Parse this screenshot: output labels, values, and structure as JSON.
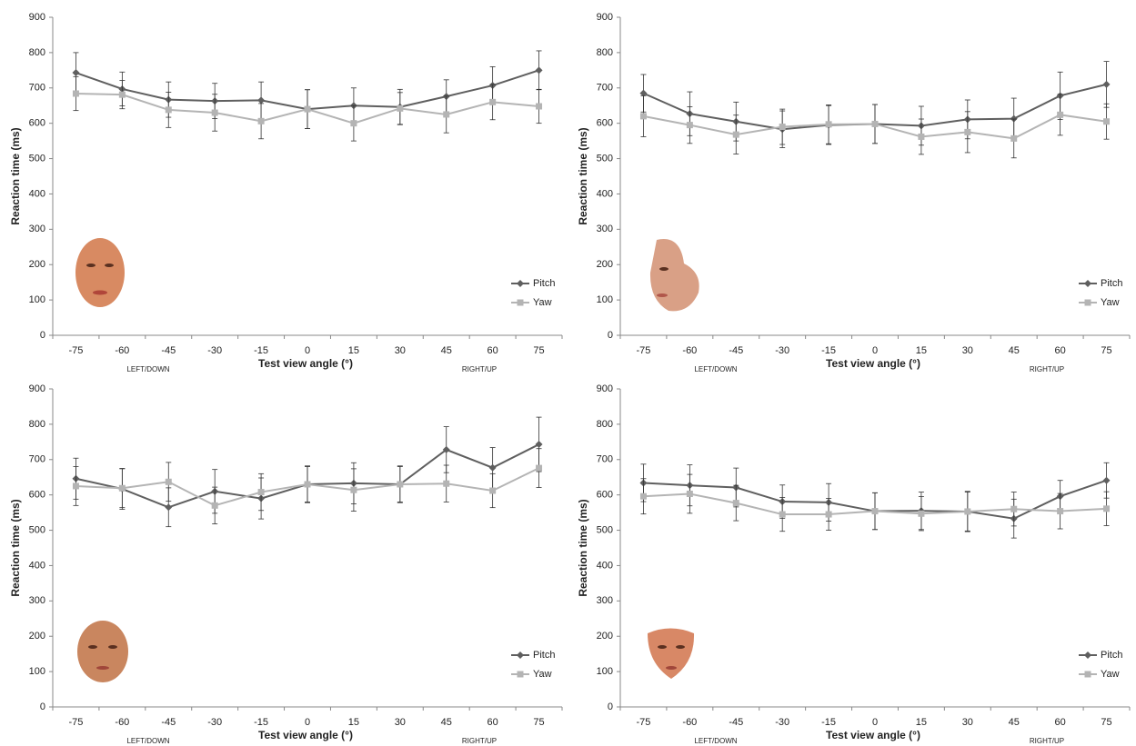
{
  "chart_data": [
    {
      "type": "line",
      "ylabel": "Reaction time (ms)",
      "xlabel": "Test view angle (°)",
      "annotations": [
        "LEFT/DOWN",
        "RIGHT/UP"
      ],
      "categories": [
        "-75",
        "-60",
        "-45",
        "-30",
        "-15",
        "0",
        "15",
        "30",
        "45",
        "60",
        "75"
      ],
      "ylim": [
        0,
        900
      ],
      "yticks": [
        0,
        100,
        200,
        300,
        400,
        500,
        600,
        700,
        800,
        900
      ],
      "legend": "right",
      "series": [
        {
          "name": "Pitch",
          "color": "#5f5f5f",
          "marker": "diamond",
          "values": [
            743,
            697,
            667,
            663,
            665,
            640,
            650,
            646,
            676,
            707,
            750
          ],
          "errors": [
            57,
            48,
            50,
            50,
            52,
            55,
            50,
            50,
            47,
            53,
            55
          ]
        },
        {
          "name": "Yaw",
          "color": "#b4b4b4",
          "marker": "square",
          "values": [
            684,
            681,
            638,
            630,
            606,
            640,
            600,
            642,
            625,
            660,
            648
          ],
          "errors": [
            48,
            40,
            50,
            52,
            50,
            55,
            50,
            45,
            52,
            50,
            48
          ]
        }
      ]
    },
    {
      "type": "line",
      "ylabel": "Reaction time (ms)",
      "xlabel": "Test view angle (°)",
      "annotations": [
        "LEFT/DOWN",
        "RIGHT/UP"
      ],
      "categories": [
        "-75",
        "-60",
        "-45",
        "-30",
        "-15",
        "0",
        "15",
        "30",
        "45",
        "60",
        "75"
      ],
      "ylim": [
        0,
        900
      ],
      "yticks": [
        0,
        100,
        200,
        300,
        400,
        500,
        600,
        700,
        800,
        900
      ],
      "legend": "right",
      "series": [
        {
          "name": "Pitch",
          "color": "#5f5f5f",
          "marker": "diamond",
          "values": [
            685,
            627,
            605,
            583,
            595,
            598,
            593,
            611,
            613,
            678,
            710
          ],
          "errors": [
            53,
            62,
            55,
            52,
            55,
            55,
            55,
            55,
            58,
            67,
            65
          ]
        },
        {
          "name": "Yaw",
          "color": "#b4b4b4",
          "marker": "square",
          "values": [
            620,
            595,
            568,
            590,
            597,
            598,
            562,
            575,
            557,
            624,
            605
          ],
          "errors": [
            58,
            52,
            55,
            50,
            55,
            55,
            50,
            58,
            55,
            58,
            50
          ]
        }
      ]
    },
    {
      "type": "line",
      "ylabel": "Reaction time (ms)",
      "xlabel": "Test view angle (°)",
      "annotations": [
        "LEFT/DOWN",
        "RIGHT/UP"
      ],
      "categories": [
        "-75",
        "-60",
        "-45",
        "-30",
        "-15",
        "0",
        "15",
        "30",
        "45",
        "60",
        "75"
      ],
      "ylim": [
        0,
        900
      ],
      "yticks": [
        0,
        100,
        200,
        300,
        400,
        500,
        600,
        700,
        800,
        900
      ],
      "legend": "right",
      "series": [
        {
          "name": "Pitch",
          "color": "#5f5f5f",
          "marker": "diamond",
          "values": [
            646,
            617,
            565,
            610,
            590,
            630,
            633,
            630,
            728,
            677,
            743
          ],
          "errors": [
            58,
            58,
            55,
            62,
            58,
            50,
            58,
            50,
            65,
            57,
            77
          ]
        },
        {
          "name": "Yaw",
          "color": "#b4b4b4",
          "marker": "square",
          "values": [
            625,
            619,
            637,
            570,
            608,
            630,
            614,
            630,
            632,
            612,
            676
          ],
          "errors": [
            55,
            55,
            55,
            52,
            52,
            52,
            60,
            52,
            52,
            48,
            55
          ]
        }
      ]
    },
    {
      "type": "line",
      "ylabel": "Reaction time (ms)",
      "xlabel": "Test view angle (°)",
      "annotations": [
        "LEFT/DOWN",
        "RIGHT/UP"
      ],
      "categories": [
        "-75",
        "-60",
        "-45",
        "-30",
        "-15",
        "0",
        "15",
        "30",
        "45",
        "60",
        "75"
      ],
      "ylim": [
        0,
        900
      ],
      "yticks": [
        0,
        100,
        200,
        300,
        400,
        500,
        600,
        700,
        800,
        900
      ],
      "legend": "right",
      "series": [
        {
          "name": "Pitch",
          "color": "#5f5f5f",
          "marker": "diamond",
          "values": [
            634,
            627,
            621,
            581,
            579,
            554,
            555,
            553,
            533,
            596,
            641
          ],
          "errors": [
            53,
            58,
            55,
            47,
            53,
            52,
            53,
            55,
            55,
            45,
            50
          ]
        },
        {
          "name": "Yaw",
          "color": "#b4b4b4",
          "marker": "square",
          "values": [
            596,
            603,
            577,
            545,
            545,
            554,
            547,
            553,
            560,
            554,
            561
          ],
          "errors": [
            50,
            55,
            50,
            48,
            45,
            52,
            48,
            57,
            48,
            50,
            48
          ]
        }
      ]
    }
  ]
}
